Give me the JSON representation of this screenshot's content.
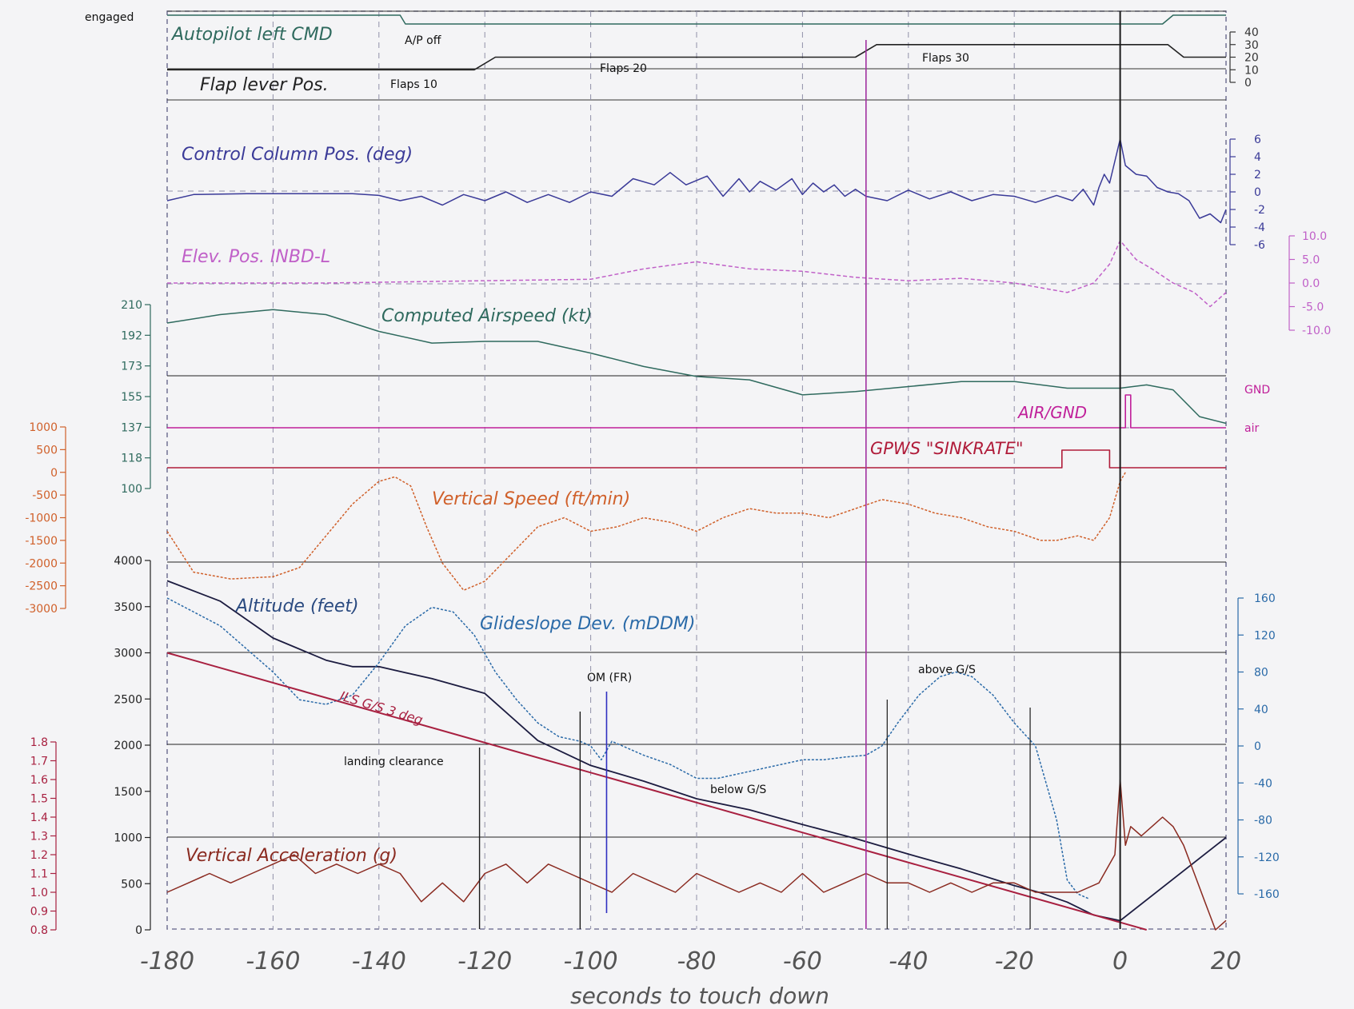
{
  "chart_data": {
    "type": "line",
    "xlabel": "seconds to touch down",
    "x_ticks": [
      -180,
      -160,
      -140,
      -120,
      -100,
      -80,
      -60,
      -40,
      -20,
      0,
      20
    ],
    "xlim": [
      -180,
      20
    ],
    "touchdown_x": 0,
    "colors": {
      "autopilot": "#2f6a5e",
      "flap": "#222222",
      "column": "#3a3a98",
      "elevator": "#c060c8",
      "airspeed": "#2f6a5e",
      "airgnd": "#c0209a",
      "gpws": "#b01c3a",
      "vspeed": "#d0602a",
      "altitude": "#1c1c40",
      "glideslope": "#2a6aa8",
      "ils": "#a82040",
      "vacc": "#8a2a20"
    },
    "labels": {
      "engaged": "engaged",
      "autopilot": "Autopilot left CMD",
      "ap_off": "A/P off",
      "flap_lever": "Flap lever Pos.",
      "flaps10": "Flaps 10",
      "flaps20": "Flaps 20",
      "flaps30": "Flaps 30",
      "column": "Control Column Pos. (deg)",
      "elevator": "Elev. Pos. INBD-L",
      "airspeed": "Computed Airspeed (kt)",
      "airgnd": "AIR/GND",
      "gnd": "GND",
      "air": "air",
      "gpws": "GPWS \"SINKRATE\"",
      "vspeed": "Vertical Speed (ft/min)",
      "altitude": "Altitude (feet)",
      "glideslope": "Glideslope Dev. (mDDM)",
      "ils": "ILS G/S 3 deg",
      "om": "OM (FR)",
      "landing": "landing clearance",
      "above": "above G/S",
      "below": "below G/S",
      "vacc": "Vertical Acceleration (g)"
    },
    "axes": {
      "flaps": [
        "40",
        "30",
        "20",
        "10",
        "0"
      ],
      "column": [
        "6",
        "4",
        "2",
        "0",
        "-2",
        "-4",
        "-6"
      ],
      "elevator": [
        "10.0",
        "5.0",
        "0.0",
        "-5.0",
        "-10.0"
      ],
      "airspeed": [
        "210",
        "192",
        "173",
        "155",
        "137",
        "118",
        "100"
      ],
      "vspeed": [
        "1000",
        "500",
        "0",
        "-500",
        "-1000",
        "-1500",
        "-2000",
        "-2500",
        "-3000"
      ],
      "altitude": [
        "4000",
        "3500",
        "3000",
        "2500",
        "2000",
        "1500",
        "1000",
        "500",
        "0"
      ],
      "glideslope": [
        "160",
        "120",
        "80",
        "40",
        "0",
        "-40",
        "-80",
        "-120",
        "-160"
      ],
      "vacc": [
        "1.8",
        "1.7",
        "1.6",
        "1.5",
        "1.4",
        "1.3",
        "1.2",
        "1.1",
        "1.0",
        "0.9",
        "0.8"
      ]
    },
    "series": [
      {
        "name": "Autopilot left CMD",
        "key": "autopilot",
        "x": [
          -180,
          -136,
          -135,
          8,
          10,
          20
        ],
        "y": [
          1,
          1,
          0,
          0,
          1,
          1
        ]
      },
      {
        "name": "Flap lever Pos.",
        "key": "flap",
        "x": [
          -180,
          -122,
          -118,
          -50,
          -46,
          9,
          12,
          20
        ],
        "y": [
          10,
          10,
          20,
          20,
          30,
          30,
          20,
          20
        ]
      },
      {
        "name": "Control Column Pos. (deg)",
        "key": "column",
        "x": [
          -180,
          -175,
          -165,
          -155,
          -145,
          -140,
          -136,
          -132,
          -128,
          -124,
          -120,
          -116,
          -112,
          -108,
          -104,
          -100,
          -96,
          -92,
          -88,
          -85,
          -82,
          -78,
          -75,
          -72,
          -70,
          -68,
          -65,
          -62,
          -60,
          -58,
          -56,
          -54,
          -52,
          -50,
          -48,
          -44,
          -40,
          -36,
          -32,
          -28,
          -24,
          -20,
          -16,
          -12,
          -9,
          -7,
          -5,
          -4,
          -3,
          -2,
          -1,
          0,
          1,
          3,
          5,
          7,
          9,
          11,
          13,
          15,
          17,
          19,
          20
        ],
        "y": [
          -1,
          -0.3,
          -0.2,
          -0.2,
          -0.2,
          -0.4,
          -1,
          -0.5,
          -1.5,
          -0.3,
          -1,
          0,
          -1.2,
          -0.3,
          -1.2,
          0,
          -0.5,
          1.5,
          0.8,
          2.2,
          0.8,
          1.8,
          -0.5,
          1.5,
          0,
          1.2,
          0.2,
          1.5,
          -0.3,
          1,
          0,
          0.8,
          -0.5,
          0.3,
          -0.5,
          -1,
          0.2,
          -0.8,
          0,
          -1,
          -0.3,
          -0.5,
          -1.2,
          -0.4,
          -1,
          0.3,
          -1.5,
          0.5,
          2,
          1,
          3.5,
          6,
          3,
          2,
          1.8,
          0.5,
          0,
          -0.2,
          -1,
          -3,
          -2.5,
          -3.5,
          -2
        ]
      },
      {
        "name": "Elev. Pos. INBD-L",
        "key": "elevator",
        "x": [
          -180,
          -150,
          -120,
          -100,
          -90,
          -80,
          -70,
          -60,
          -50,
          -40,
          -30,
          -20,
          -15,
          -10,
          -5,
          -2,
          0,
          3,
          6,
          10,
          14,
          17,
          20
        ],
        "y": [
          0,
          0,
          0.5,
          0.8,
          3,
          4.5,
          3,
          2.5,
          1.2,
          0.5,
          1,
          0,
          -1,
          -2,
          0,
          4,
          9,
          5,
          3,
          0,
          -2,
          -5,
          -2
        ]
      },
      {
        "name": "Computed Airspeed (kt)",
        "key": "airspeed",
        "x": [
          -180,
          -170,
          -160,
          -150,
          -140,
          -130,
          -120,
          -110,
          -100,
          -90,
          -80,
          -70,
          -60,
          -50,
          -40,
          -30,
          -20,
          -10,
          0,
          5,
          10,
          15,
          20
        ],
        "y": [
          199,
          204,
          207,
          204,
          194,
          187,
          188,
          188,
          181,
          173,
          167,
          165,
          156,
          158,
          161,
          164,
          164,
          160,
          160,
          162,
          159,
          143,
          139
        ]
      },
      {
        "name": "AIR/GND",
        "key": "airgnd",
        "x": [
          -180,
          1,
          1,
          2,
          2,
          20
        ],
        "y": [
          0,
          0,
          1,
          1,
          0,
          0
        ]
      },
      {
        "name": "GPWS \"SINKRATE\"",
        "key": "gpws",
        "x": [
          -180,
          -11,
          -11,
          -2,
          -2,
          20
        ],
        "y": [
          0,
          0,
          1,
          1,
          0,
          0
        ]
      },
      {
        "name": "Vertical Speed (ft/min)",
        "key": "vspeed",
        "x": [
          -180,
          -175,
          -168,
          -160,
          -155,
          -150,
          -145,
          -140,
          -137,
          -134,
          -131,
          -128,
          -124,
          -120,
          -115,
          -110,
          -105,
          -100,
          -95,
          -90,
          -85,
          -80,
          -75,
          -70,
          -65,
          -60,
          -55,
          -50,
          -45,
          -40,
          -35,
          -30,
          -25,
          -20,
          -15,
          -12,
          -8,
          -5,
          -2,
          0,
          1
        ],
        "y": [
          -1300,
          -2200,
          -2350,
          -2300,
          -2100,
          -1400,
          -700,
          -200,
          -100,
          -300,
          -1200,
          -2000,
          -2600,
          -2400,
          -1800,
          -1200,
          -1000,
          -1300,
          -1200,
          -1000,
          -1100,
          -1300,
          -1000,
          -800,
          -900,
          -900,
          -1000,
          -800,
          -600,
          -700,
          -900,
          -1000,
          -1200,
          -1300,
          -1500,
          -1500,
          -1400,
          -1500,
          -1000,
          -200,
          0
        ]
      },
      {
        "name": "Altitude (feet)",
        "key": "altitude",
        "x": [
          -180,
          -170,
          -160,
          -150,
          -145,
          -140,
          -130,
          -120,
          -110,
          -100,
          -90,
          -80,
          -70,
          -60,
          -50,
          -40,
          -30,
          -20,
          -15,
          -10,
          -5,
          0,
          20
        ],
        "y": [
          3780,
          3560,
          3160,
          2920,
          2850,
          2850,
          2720,
          2560,
          2050,
          1780,
          1610,
          1420,
          1300,
          1140,
          990,
          820,
          660,
          480,
          400,
          300,
          160,
          100,
          1000
        ]
      },
      {
        "name": "Glideslope Dev. (mDDM)",
        "key": "glideslope",
        "x": [
          -180,
          -170,
          -160,
          -155,
          -150,
          -145,
          -140,
          -135,
          -130,
          -126,
          -122,
          -118,
          -114,
          -110,
          -106,
          -102,
          -100,
          -98,
          -96,
          -94,
          -92,
          -90,
          -85,
          -80,
          -76,
          -72,
          -68,
          -64,
          -60,
          -56,
          -52,
          -48,
          -45,
          -42,
          -38,
          -34,
          -31,
          -28,
          -24,
          -20,
          -16,
          -12,
          -10,
          -8,
          -6
        ],
        "y": [
          160,
          130,
          80,
          50,
          45,
          55,
          90,
          130,
          150,
          145,
          120,
          80,
          50,
          25,
          10,
          5,
          0,
          -15,
          5,
          0,
          -5,
          -10,
          -20,
          -35,
          -35,
          -30,
          -25,
          -20,
          -15,
          -15,
          -12,
          -10,
          0,
          25,
          55,
          75,
          80,
          75,
          55,
          25,
          0,
          -80,
          -145,
          -160,
          -165
        ]
      },
      {
        "name": "ILS G/S 3 deg",
        "key": "ils",
        "x": [
          -180,
          5
        ],
        "y": [
          3000,
          0
        ]
      },
      {
        "name": "Vertical Acceleration (g)",
        "key": "vacc",
        "x": [
          -180,
          -176,
          -172,
          -168,
          -164,
          -160,
          -156,
          -152,
          -148,
          -144,
          -140,
          -136,
          -132,
          -128,
          -124,
          -120,
          -116,
          -112,
          -108,
          -104,
          -100,
          -96,
          -92,
          -88,
          -84,
          -80,
          -76,
          -72,
          -68,
          -64,
          -60,
          -56,
          -52,
          -48,
          -44,
          -40,
          -36,
          -32,
          -28,
          -24,
          -20,
          -16,
          -12,
          -8,
          -4,
          -1,
          0,
          1,
          2,
          4,
          6,
          8,
          10,
          12,
          14,
          16,
          18,
          20
        ],
        "y": [
          1.0,
          1.05,
          1.1,
          1.05,
          1.1,
          1.15,
          1.2,
          1.1,
          1.15,
          1.1,
          1.15,
          1.1,
          0.95,
          1.05,
          0.95,
          1.1,
          1.15,
          1.05,
          1.15,
          1.1,
          1.05,
          1.0,
          1.1,
          1.05,
          1.0,
          1.1,
          1.05,
          1.0,
          1.05,
          1.0,
          1.1,
          1.0,
          1.05,
          1.1,
          1.05,
          1.05,
          1.0,
          1.05,
          1.0,
          1.05,
          1.05,
          1.0,
          1.0,
          1.0,
          1.05,
          1.2,
          1.6,
          1.25,
          1.35,
          1.3,
          1.35,
          1.4,
          1.35,
          1.25,
          1.1,
          0.95,
          0.8,
          0.85
        ]
      }
    ]
  }
}
